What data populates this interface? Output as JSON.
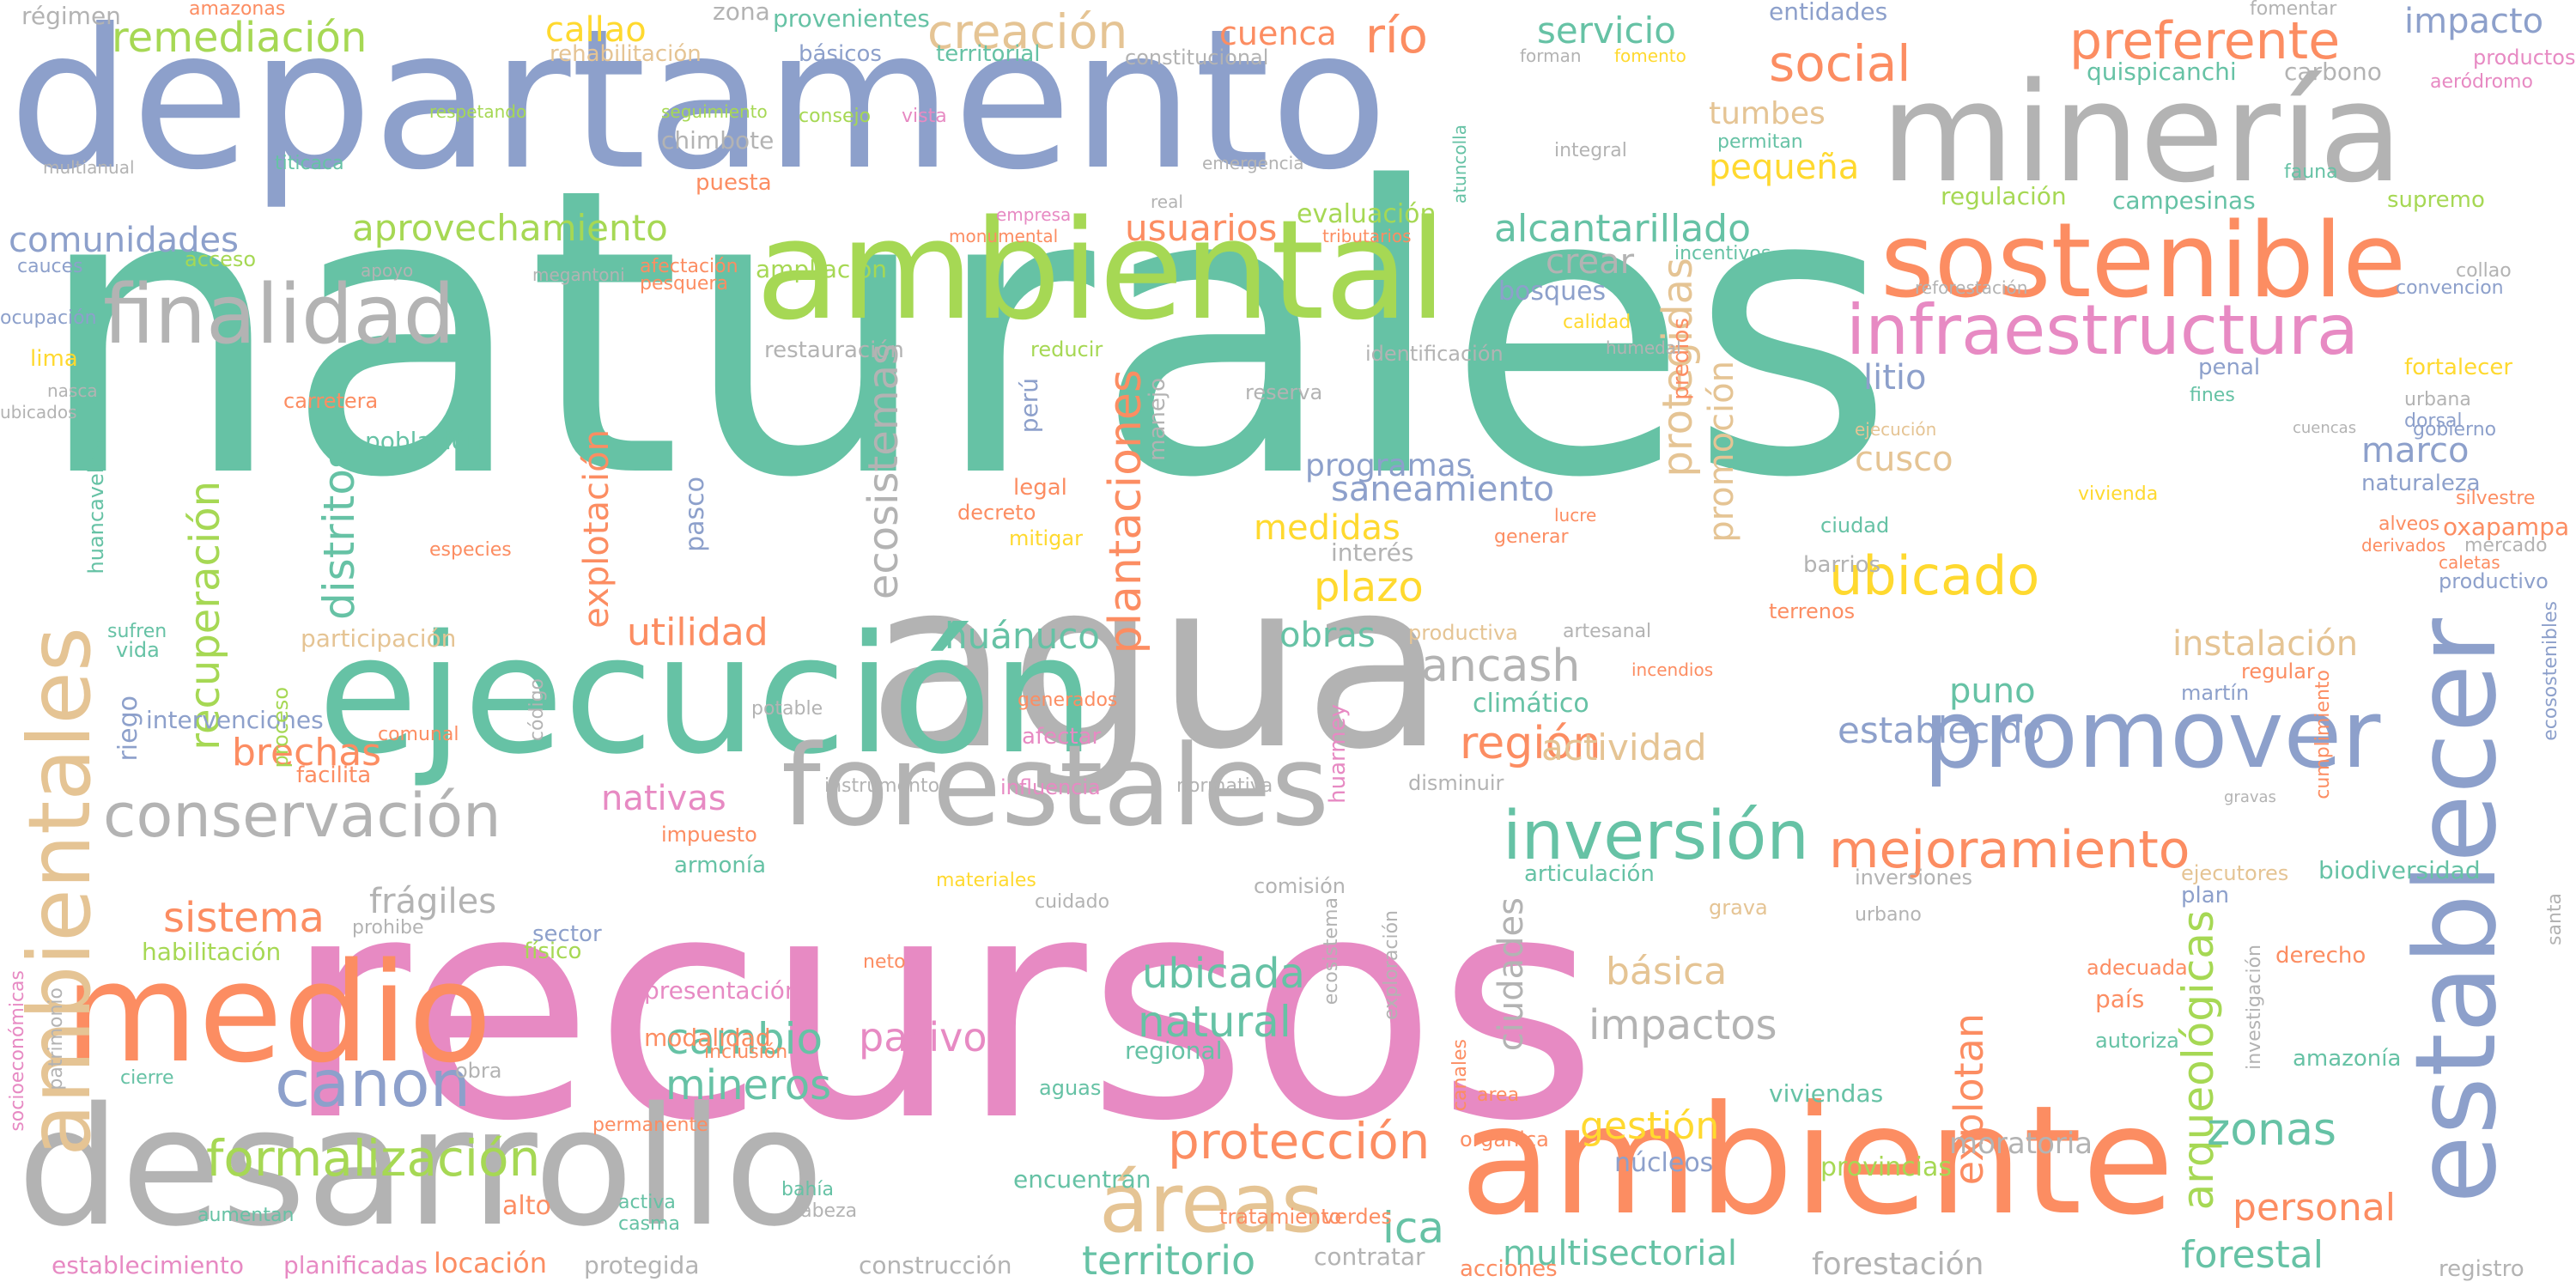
{
  "palette": {
    "teal": "#66c2a5",
    "orange": "#fc8d62",
    "blue": "#8da0cb",
    "pink": "#e78ac3",
    "green": "#a6d854",
    "yellow": "#ffd92f",
    "tan": "#e5c494",
    "gray": "#b3b3b3"
  },
  "words": [
    {
      "text": "naturales",
      "color": "teal"
    },
    {
      "text": "recursos",
      "color": "pink"
    },
    {
      "text": "departamento",
      "color": "blue"
    },
    {
      "text": "agua",
      "color": "gray"
    },
    {
      "text": "ejecución",
      "color": "teal"
    },
    {
      "text": "ambiental",
      "color": "green"
    },
    {
      "text": "desarrollo",
      "color": "gray"
    },
    {
      "text": "ambiente",
      "color": "orange"
    },
    {
      "text": "minería",
      "color": "gray"
    },
    {
      "text": "medio",
      "color": "orange"
    },
    {
      "text": "forestales",
      "color": "gray"
    },
    {
      "text": "establecer",
      "color": "blue"
    },
    {
      "text": "sostenible",
      "color": "orange"
    },
    {
      "text": "promover",
      "color": "blue"
    },
    {
      "text": "ambientales",
      "color": "tan"
    },
    {
      "text": "finalidad",
      "color": "gray"
    },
    {
      "text": "infraestructura",
      "color": "pink"
    },
    {
      "text": "conservación",
      "color": "gray"
    },
    {
      "text": "áreas",
      "color": "tan"
    },
    {
      "text": "canon",
      "color": "blue"
    },
    {
      "text": "inversión",
      "color": "teal"
    },
    {
      "text": "mejoramiento",
      "color": "orange"
    },
    {
      "text": "protección",
      "color": "orange"
    },
    {
      "text": "formalización",
      "color": "green"
    },
    {
      "text": "social",
      "color": "orange"
    },
    {
      "text": "ubicado",
      "color": "yellow"
    },
    {
      "text": "preferente",
      "color": "orange"
    },
    {
      "text": "remediación",
      "color": "green"
    },
    {
      "text": "creación",
      "color": "tan"
    },
    {
      "text": "ecosistemas",
      "color": "gray"
    },
    {
      "text": "plantaciones",
      "color": "orange"
    },
    {
      "text": "distritos",
      "color": "teal"
    },
    {
      "text": "recuperación",
      "color": "green"
    },
    {
      "text": "explotación",
      "color": "orange"
    },
    {
      "text": "arqueológicas",
      "color": "green"
    },
    {
      "text": "ancash",
      "color": "gray"
    },
    {
      "text": "región",
      "color": "orange"
    },
    {
      "text": "sistema",
      "color": "orange"
    },
    {
      "text": "cambio",
      "color": "teal"
    },
    {
      "text": "mineros",
      "color": "teal"
    },
    {
      "text": "natural",
      "color": "teal"
    },
    {
      "text": "ubicada",
      "color": "teal"
    },
    {
      "text": "pasivos",
      "color": "pink"
    },
    {
      "text": "impactos",
      "color": "gray"
    },
    {
      "text": "territorio",
      "color": "teal"
    },
    {
      "text": "zonas",
      "color": "teal"
    },
    {
      "text": "forestal",
      "color": "teal"
    },
    {
      "text": "personal",
      "color": "orange"
    },
    {
      "text": "gestión",
      "color": "yellow"
    },
    {
      "text": "aprovechamiento",
      "color": "green"
    },
    {
      "text": "comunidades",
      "color": "blue"
    },
    {
      "text": "alcantarillado",
      "color": "teal"
    },
    {
      "text": "usuarios",
      "color": "orange"
    },
    {
      "text": "saneamiento",
      "color": "blue"
    },
    {
      "text": "medidas",
      "color": "yellow"
    },
    {
      "text": "plazo",
      "color": "yellow"
    },
    {
      "text": "utilidad",
      "color": "orange"
    },
    {
      "text": "brechas",
      "color": "orange"
    },
    {
      "text": "huánuco",
      "color": "teal"
    },
    {
      "text": "actividad",
      "color": "tan"
    },
    {
      "text": "establecido",
      "color": "blue"
    },
    {
      "text": "instalación",
      "color": "tan"
    },
    {
      "text": "puno",
      "color": "teal"
    },
    {
      "text": "marco",
      "color": "blue"
    },
    {
      "text": "cusco",
      "color": "tan"
    },
    {
      "text": "litio",
      "color": "blue"
    },
    {
      "text": "servicio",
      "color": "teal"
    },
    {
      "text": "río",
      "color": "orange"
    },
    {
      "text": "cuenca",
      "color": "orange"
    },
    {
      "text": "callao",
      "color": "yellow"
    },
    {
      "text": "impacto",
      "color": "blue"
    },
    {
      "text": "básica",
      "color": "tan"
    },
    {
      "text": "frágiles",
      "color": "gray"
    },
    {
      "text": "nativas",
      "color": "pink"
    },
    {
      "text": "obras",
      "color": "teal"
    },
    {
      "text": "pequeña",
      "color": "yellow"
    },
    {
      "text": "tumbes",
      "color": "tan"
    },
    {
      "text": "crear",
      "color": "gray"
    },
    {
      "text": "programas",
      "color": "blue"
    },
    {
      "text": "promoción",
      "color": "tan"
    },
    {
      "text": "protegidas",
      "color": "tan"
    },
    {
      "text": "ciudades",
      "color": "gray"
    },
    {
      "text": "explotan",
      "color": "orange"
    },
    {
      "text": "ica",
      "color": "teal"
    },
    {
      "text": "moratoria",
      "color": "gray"
    },
    {
      "text": "multisectorial",
      "color": "teal"
    },
    {
      "text": "forestación",
      "color": "gray"
    },
    {
      "text": "registro",
      "color": "gray"
    },
    {
      "text": "construcción",
      "color": "gray"
    },
    {
      "text": "establecimiento",
      "color": "pink"
    },
    {
      "text": "planificadas",
      "color": "pink"
    },
    {
      "text": "locación",
      "color": "orange"
    },
    {
      "text": "protegida",
      "color": "gray"
    },
    {
      "text": "acciones",
      "color": "orange"
    },
    {
      "text": "contratar",
      "color": "gray"
    },
    {
      "text": "núcleos",
      "color": "blue"
    },
    {
      "text": "provincias",
      "color": "green"
    },
    {
      "text": "tratamiento",
      "color": "orange"
    },
    {
      "text": "encuentran",
      "color": "teal"
    },
    {
      "text": "viviendas",
      "color": "teal"
    },
    {
      "text": "presentación",
      "color": "pink"
    },
    {
      "text": "habilitación",
      "color": "green"
    },
    {
      "text": "modalidad",
      "color": "orange"
    },
    {
      "text": "intervenciones",
      "color": "blue"
    },
    {
      "text": "participación",
      "color": "tan"
    },
    {
      "text": "población",
      "color": "teal"
    },
    {
      "text": "restauración",
      "color": "gray"
    },
    {
      "text": "bosques",
      "color": "blue"
    },
    {
      "text": "evaluación",
      "color": "green"
    },
    {
      "text": "ampliación",
      "color": "green"
    },
    {
      "text": "chimbote",
      "color": "gray"
    },
    {
      "text": "regulación",
      "color": "green"
    },
    {
      "text": "campesinas",
      "color": "teal"
    },
    {
      "text": "carbono",
      "color": "gray"
    },
    {
      "text": "quispicanchi",
      "color": "teal"
    },
    {
      "text": "entidades",
      "color": "blue"
    },
    {
      "text": "fomentar",
      "color": "gray"
    },
    {
      "text": "territorial",
      "color": "teal"
    },
    {
      "text": "básicos",
      "color": "blue"
    },
    {
      "text": "rehabilitación",
      "color": "tan"
    },
    {
      "text": "constitucional",
      "color": "gray"
    },
    {
      "text": "provenientes",
      "color": "teal"
    },
    {
      "text": "zona",
      "color": "gray"
    },
    {
      "text": "régimen",
      "color": "gray"
    },
    {
      "text": "amazonas",
      "color": "orange"
    },
    {
      "text": "fortalecer",
      "color": "yellow"
    },
    {
      "text": "gobierno",
      "color": "blue"
    },
    {
      "text": "naturaleza",
      "color": "blue"
    },
    {
      "text": "oxapampa",
      "color": "orange"
    },
    {
      "text": "mercado",
      "color": "gray"
    },
    {
      "text": "productivo",
      "color": "blue"
    },
    {
      "text": "biodiversidad",
      "color": "teal"
    },
    {
      "text": "cumplimiento",
      "color": "orange"
    },
    {
      "text": "ecosostenibles",
      "color": "blue"
    },
    {
      "text": "santa",
      "color": "gray"
    },
    {
      "text": "investigación",
      "color": "gray"
    },
    {
      "text": "amazonía",
      "color": "teal"
    },
    {
      "text": "derecho",
      "color": "orange"
    },
    {
      "text": "país",
      "color": "orange"
    },
    {
      "text": "adecuada",
      "color": "orange"
    },
    {
      "text": "autoriza",
      "color": "teal"
    },
    {
      "text": "plan",
      "color": "blue"
    },
    {
      "text": "ejecutores",
      "color": "tan"
    },
    {
      "text": "inversiones",
      "color": "gray"
    },
    {
      "text": "articulación",
      "color": "teal"
    },
    {
      "text": "climático",
      "color": "teal"
    },
    {
      "text": "ciudad",
      "color": "teal"
    },
    {
      "text": "barrios",
      "color": "gray"
    },
    {
      "text": "terrenos",
      "color": "orange"
    },
    {
      "text": "regular",
      "color": "orange"
    },
    {
      "text": "ejecución",
      "color": "tan"
    },
    {
      "text": "vivienda",
      "color": "yellow"
    },
    {
      "text": "fines",
      "color": "teal"
    },
    {
      "text": "penal",
      "color": "blue"
    },
    {
      "text": "urbana",
      "color": "gray"
    },
    {
      "text": "dorsal",
      "color": "blue"
    },
    {
      "text": "silvestre",
      "color": "orange"
    },
    {
      "text": "incentivos",
      "color": "teal"
    },
    {
      "text": "permitan",
      "color": "teal"
    },
    {
      "text": "predios",
      "color": "orange"
    },
    {
      "text": "incendios",
      "color": "orange"
    },
    {
      "text": "artesanal",
      "color": "gray"
    },
    {
      "text": "productiva",
      "color": "tan"
    },
    {
      "text": "interés",
      "color": "gray"
    },
    {
      "text": "identificación",
      "color": "gray"
    },
    {
      "text": "reserva",
      "color": "gray"
    },
    {
      "text": "manejo",
      "color": "gray"
    },
    {
      "text": "perú",
      "color": "blue"
    },
    {
      "text": "decreto",
      "color": "orange"
    },
    {
      "text": "legal",
      "color": "orange"
    },
    {
      "text": "mitigar",
      "color": "yellow"
    },
    {
      "text": "reducir",
      "color": "green"
    },
    {
      "text": "impuesto",
      "color": "orange"
    },
    {
      "text": "armonía",
      "color": "teal"
    },
    {
      "text": "instrumento",
      "color": "gray"
    },
    {
      "text": "influencia",
      "color": "pink"
    },
    {
      "text": "afectar",
      "color": "pink"
    },
    {
      "text": "generados",
      "color": "orange"
    },
    {
      "text": "potable",
      "color": "gray"
    },
    {
      "text": "riego",
      "color": "blue"
    },
    {
      "text": "pasco",
      "color": "blue"
    },
    {
      "text": "lima",
      "color": "yellow"
    },
    {
      "text": "carretera",
      "color": "orange"
    },
    {
      "text": "acceso",
      "color": "green"
    },
    {
      "text": "cauces",
      "color": "blue"
    },
    {
      "text": "multianual",
      "color": "gray"
    },
    {
      "text": "titicaca",
      "color": "teal"
    },
    {
      "text": "puesta",
      "color": "orange"
    },
    {
      "text": "afectación",
      "color": "orange"
    },
    {
      "text": "pesquera",
      "color": "orange"
    },
    {
      "text": "huancavelica",
      "color": "teal"
    },
    {
      "text": "nasca",
      "color": "gray"
    },
    {
      "text": "vida",
      "color": "teal"
    },
    {
      "text": "sufren",
      "color": "teal"
    },
    {
      "text": "proceso",
      "color": "green"
    },
    {
      "text": "comunal",
      "color": "orange"
    },
    {
      "text": "código",
      "color": "gray"
    },
    {
      "text": "facilita",
      "color": "orange"
    },
    {
      "text": "sector",
      "color": "blue"
    },
    {
      "text": "físico",
      "color": "green"
    },
    {
      "text": "prohibe",
      "color": "gray"
    },
    {
      "text": "cierre",
      "color": "teal"
    },
    {
      "text": "patrimonio",
      "color": "gray"
    },
    {
      "text": "obra",
      "color": "gray"
    },
    {
      "text": "alto",
      "color": "orange"
    },
    {
      "text": "permanente",
      "color": "orange"
    },
    {
      "text": "bahía",
      "color": "teal"
    },
    {
      "text": "neto",
      "color": "orange"
    },
    {
      "text": "materiales",
      "color": "yellow"
    },
    {
      "text": "regional",
      "color": "teal"
    },
    {
      "text": "verdes",
      "color": "orange"
    },
    {
      "text": "ecosistema",
      "color": "gray"
    },
    {
      "text": "exploración",
      "color": "gray"
    },
    {
      "text": "canales",
      "color": "orange"
    },
    {
      "text": "area",
      "color": "orange"
    },
    {
      "text": "orgánica",
      "color": "orange"
    },
    {
      "text": "grava",
      "color": "tan"
    },
    {
      "text": "huarmey",
      "color": "pink"
    },
    {
      "text": "disminuir",
      "color": "gray"
    },
    {
      "text": "comisión",
      "color": "gray"
    },
    {
      "text": "normativa",
      "color": "gray"
    },
    {
      "text": "aguas",
      "color": "teal"
    },
    {
      "text": "inclusión",
      "color": "orange"
    },
    {
      "text": "cuidado",
      "color": "gray"
    },
    {
      "text": "casma",
      "color": "teal"
    },
    {
      "text": "activa",
      "color": "teal"
    },
    {
      "text": "aumentan",
      "color": "teal"
    },
    {
      "text": "socioeconómicas",
      "color": "pink"
    },
    {
      "text": "apoyo",
      "color": "gray"
    },
    {
      "text": "especies",
      "color": "orange"
    },
    {
      "text": "calidad",
      "color": "yellow"
    },
    {
      "text": "humedal",
      "color": "gray"
    },
    {
      "text": "generar",
      "color": "orange"
    },
    {
      "text": "lucre",
      "color": "orange"
    },
    {
      "text": "ocupación",
      "color": "blue"
    },
    {
      "text": "consejo",
      "color": "green"
    },
    {
      "text": "vista",
      "color": "pink"
    },
    {
      "text": "seguimiento",
      "color": "green"
    },
    {
      "text": "respetando",
      "color": "green"
    },
    {
      "text": "integral",
      "color": "gray"
    },
    {
      "text": "emergencia",
      "color": "gray"
    },
    {
      "text": "reforestación",
      "color": "gray"
    },
    {
      "text": "supremo",
      "color": "green"
    },
    {
      "text": "aeródromo",
      "color": "pink"
    },
    {
      "text": "productos",
      "color": "pink"
    },
    {
      "text": "convencion",
      "color": "blue"
    },
    {
      "text": "collao",
      "color": "gray"
    },
    {
      "text": "martín",
      "color": "blue"
    },
    {
      "text": "alveos",
      "color": "orange"
    },
    {
      "text": "derivados",
      "color": "orange"
    },
    {
      "text": "urbano",
      "color": "gray"
    },
    {
      "text": "cabeza",
      "color": "gray"
    },
    {
      "text": "cuencas",
      "color": "gray"
    },
    {
      "text": "caletas",
      "color": "orange"
    },
    {
      "text": "ubicados",
      "color": "gray"
    },
    {
      "text": "fauna",
      "color": "teal"
    },
    {
      "text": "monumental",
      "color": "orange"
    },
    {
      "text": "empresa",
      "color": "pink"
    },
    {
      "text": "tributarios",
      "color": "orange"
    },
    {
      "text": "real",
      "color": "gray"
    },
    {
      "text": "atuncolla",
      "color": "teal"
    },
    {
      "text": "forman",
      "color": "gray"
    },
    {
      "text": "fomento",
      "color": "yellow"
    },
    {
      "text": "megantoni",
      "color": "gray"
    },
    {
      "text": "gravas",
      "color": "gray"
    }
  ]
}
